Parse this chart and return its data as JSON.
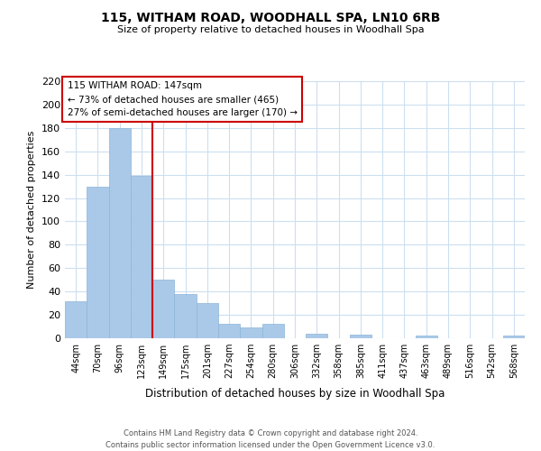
{
  "title": "115, WITHAM ROAD, WOODHALL SPA, LN10 6RB",
  "subtitle": "Size of property relative to detached houses in Woodhall Spa",
  "xlabel": "Distribution of detached houses by size in Woodhall Spa",
  "ylabel": "Number of detached properties",
  "bar_color": "#aac9e8",
  "bar_edge_color": "#8ab4d8",
  "categories": [
    "44sqm",
    "70sqm",
    "96sqm",
    "123sqm",
    "149sqm",
    "175sqm",
    "201sqm",
    "227sqm",
    "254sqm",
    "280sqm",
    "306sqm",
    "332sqm",
    "358sqm",
    "385sqm",
    "411sqm",
    "437sqm",
    "463sqm",
    "489sqm",
    "516sqm",
    "542sqm",
    "568sqm"
  ],
  "values": [
    32,
    130,
    180,
    139,
    50,
    38,
    30,
    12,
    9,
    12,
    0,
    4,
    0,
    3,
    0,
    0,
    2,
    0,
    0,
    0,
    2
  ],
  "ylim": [
    0,
    220
  ],
  "yticks": [
    0,
    20,
    40,
    60,
    80,
    100,
    120,
    140,
    160,
    180,
    200,
    220
  ],
  "annotation_line1": "115 WITHAM ROAD: 147sqm",
  "annotation_line2": "← 73% of detached houses are smaller (465)",
  "annotation_line3": "27% of semi-detached houses are larger (170) →",
  "vline_color": "#cc0000",
  "annotation_box_edge": "#cc0000",
  "footer_line1": "Contains HM Land Registry data © Crown copyright and database right 2024.",
  "footer_line2": "Contains public sector information licensed under the Open Government Licence v3.0.",
  "background_color": "#ffffff",
  "grid_color": "#ccdff0"
}
